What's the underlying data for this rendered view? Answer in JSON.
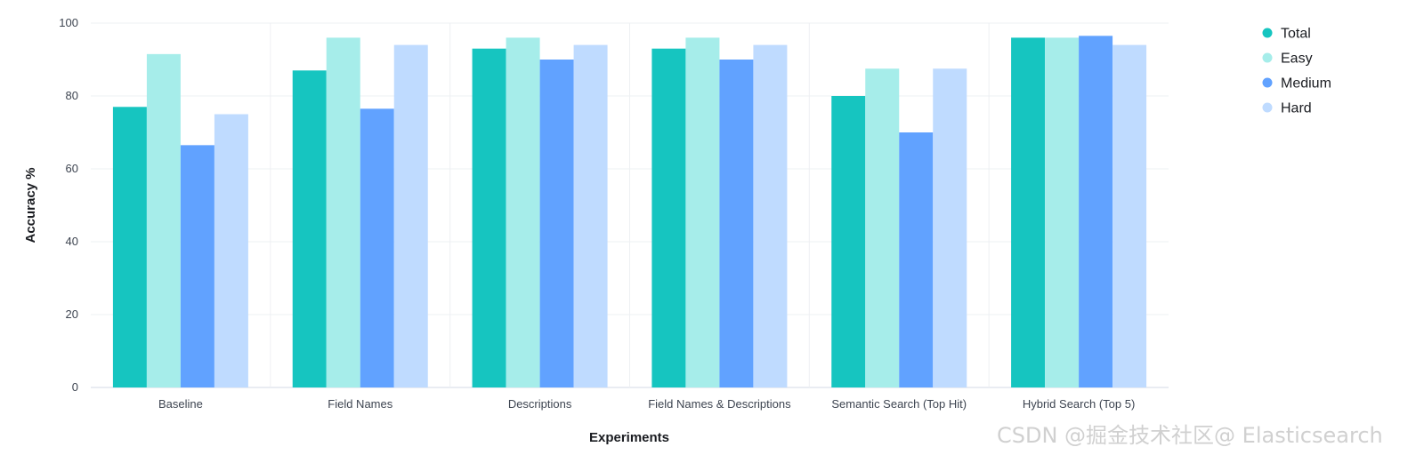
{
  "chart_data": {
    "type": "bar",
    "title": "",
    "xlabel": "Experiments",
    "ylabel": "Accuracy %",
    "ylim": [
      0,
      100
    ],
    "yticks": [
      0,
      20,
      40,
      60,
      80,
      100
    ],
    "grid": true,
    "legend_position": "top-right",
    "categories": [
      "Baseline",
      "Field Names",
      "Descriptions",
      "Field Names & Descriptions",
      "Semantic Search (Top Hit)",
      "Hybrid Search (Top 5)"
    ],
    "series": [
      {
        "name": "Total",
        "color": "#16c5c0",
        "values": [
          77,
          87,
          93,
          93,
          80,
          96
        ]
      },
      {
        "name": "Easy",
        "color": "#a6edea",
        "values": [
          91.5,
          96,
          96,
          96,
          87.5,
          96
        ]
      },
      {
        "name": "Medium",
        "color": "#61a2ff",
        "values": [
          66.5,
          76.5,
          90,
          90,
          70,
          96.5
        ]
      },
      {
        "name": "Hard",
        "color": "#bfdbff",
        "values": [
          75,
          94,
          94,
          94,
          87.5,
          94
        ]
      }
    ]
  },
  "watermark": "CSDN @掘金技术社区@ Elasticsearch"
}
